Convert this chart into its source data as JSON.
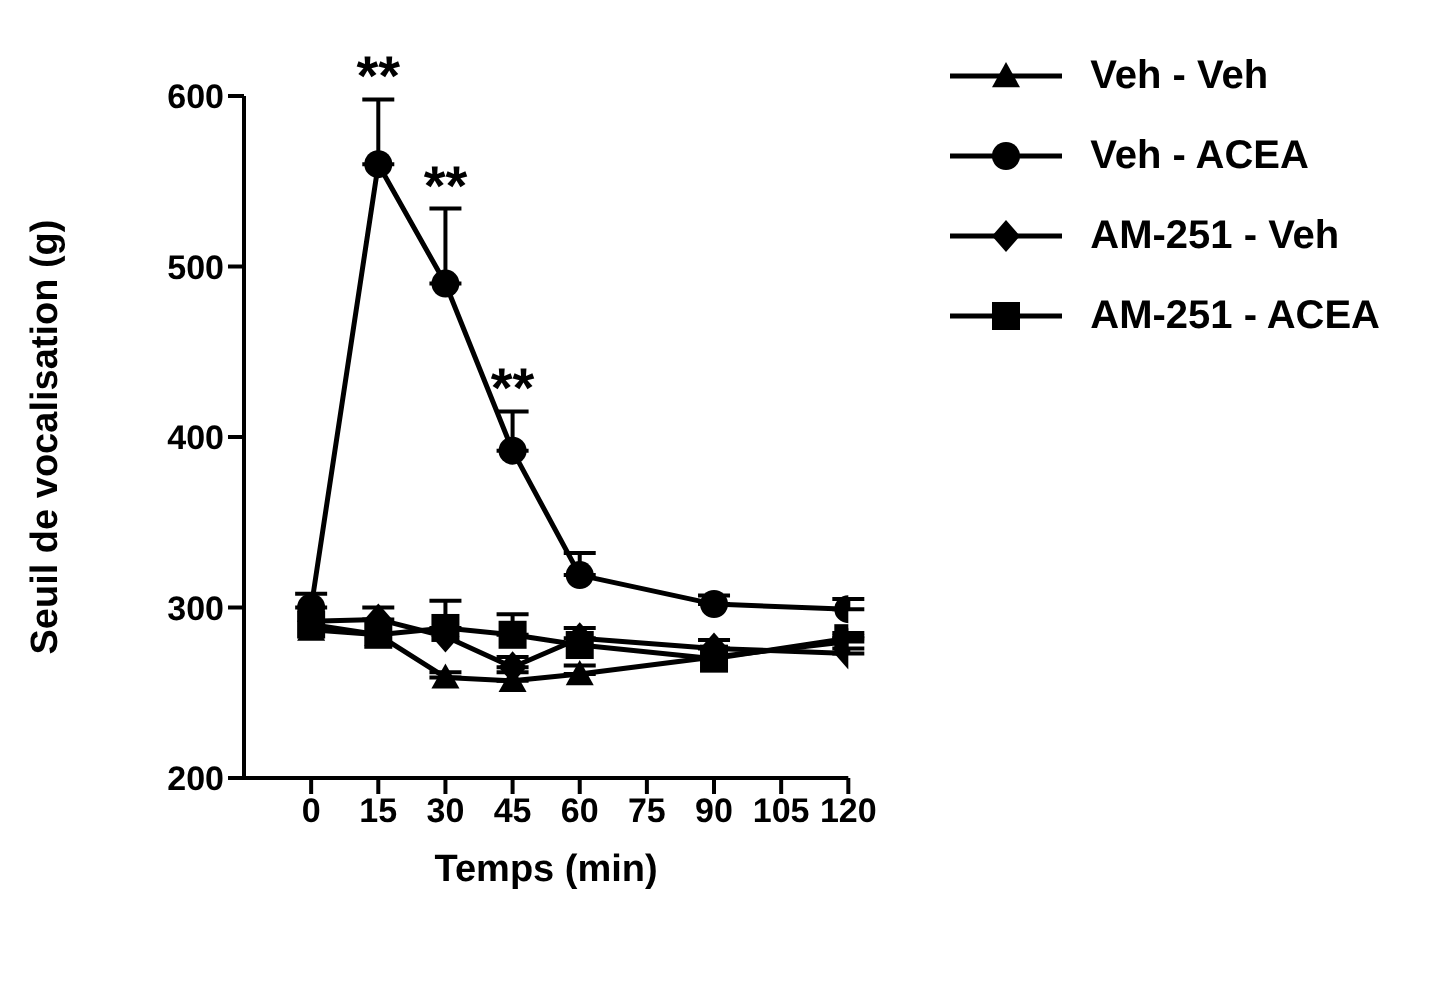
{
  "chart_data": {
    "type": "line",
    "xlabel": "Temps (min)",
    "ylabel": "Seuil de vocalisation (g)",
    "x": [
      0,
      15,
      30,
      45,
      60,
      90,
      120
    ],
    "xlim": [
      -15,
      120
    ],
    "xticks": [
      0,
      15,
      30,
      45,
      60,
      75,
      90,
      105,
      120
    ],
    "ylim": [
      200,
      600
    ],
    "yticks": [
      200,
      300,
      400,
      500,
      600
    ],
    "grid": false,
    "legend": "top right",
    "line_style": "solid",
    "series": [
      {
        "name": "Veh - Veh",
        "color": "#000000",
        "marker": "triangle",
        "values": [
          287,
          284,
          259,
          257,
          261,
          271,
          280
        ],
        "errors": [
          null,
          null,
          [
            259,
            262
          ],
          [
            257,
            262
          ],
          [
            261,
            266
          ],
          null,
          [
            280,
            283
          ]
        ]
      },
      {
        "name": "Veh - ACEA",
        "color": "#000000",
        "marker": "circle",
        "values": [
          300,
          560,
          490,
          392,
          319,
          302,
          299
        ],
        "errors": [
          [
            300,
            308
          ],
          [
            560,
            598
          ],
          [
            490,
            534
          ],
          [
            392,
            415
          ],
          [
            319,
            332
          ],
          [
            302,
            307
          ],
          [
            299,
            305
          ]
        ]
      },
      {
        "name": "AM-251 - Veh",
        "color": "#000000",
        "marker": "diamond",
        "values": [
          292,
          293,
          283,
          265,
          282,
          276,
          273
        ],
        "errors": [
          null,
          [
            293,
            300
          ],
          null,
          [
            265,
            271
          ],
          [
            282,
            288
          ],
          [
            276,
            281
          ],
          [
            273,
            276
          ]
        ]
      },
      {
        "name": "AM-251 - ACEA",
        "color": "#000000",
        "marker": "square",
        "values": [
          290,
          284,
          288,
          284,
          278,
          270,
          282
        ],
        "errors": [
          null,
          null,
          [
            288,
            304
          ],
          [
            284,
            296
          ],
          null,
          null,
          [
            282,
            285
          ]
        ]
      }
    ],
    "annotations": [
      {
        "text": "**",
        "x": 15,
        "y": 598
      },
      {
        "text": "**",
        "x": 30,
        "y": 534
      },
      {
        "text": "**",
        "x": 45,
        "y": 415
      }
    ]
  }
}
